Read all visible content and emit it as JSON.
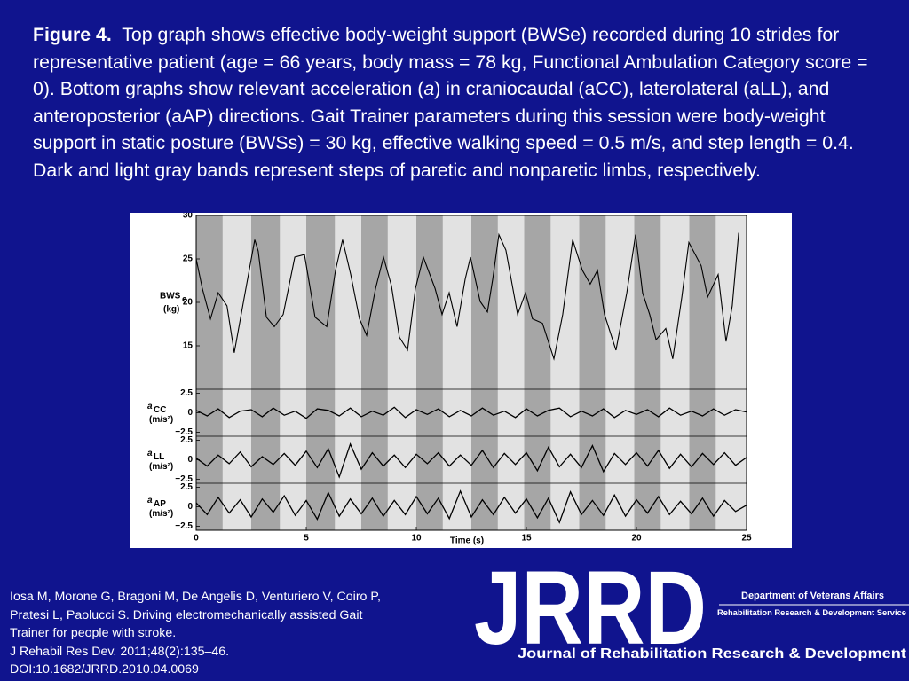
{
  "caption": {
    "label": "Figure  4.",
    "before": "Top graph shows effective body-weight support (BWSe) recorded during 10 strides for representative patient (age = 66 years, body mass = 78 kg, Functional Ambulation Category score = 0). Bottom graphs show relevant acceleration (",
    "italic": "a",
    "after": ") in craniocaudal (aCC), laterolateral (aLL), and anteroposterior (aAP) directions. Gait Trainer parameters during this session were body-weight support in static posture (BWSs) = 30 kg, effective walking speed = 0.5 m/s, and step length = 0.4. Dark and light gray bands represent steps of paretic and nonparetic limbs, respectively."
  },
  "chart_data": {
    "type": "line",
    "xlabel": "Time (s)",
    "xlim": [
      0,
      25
    ],
    "xticks": [
      0,
      5,
      10,
      15,
      20,
      25
    ],
    "band_colors": {
      "paretic": "#a6a6a6",
      "nonparetic": "#e2e2e2"
    },
    "paretic_steps": [
      [
        0,
        1.2
      ],
      [
        2.5,
        3.8
      ],
      [
        5,
        6.3
      ],
      [
        7.5,
        8.7
      ],
      [
        10,
        11.2
      ],
      [
        12.5,
        13.7
      ],
      [
        14.9,
        16.1
      ],
      [
        17.4,
        18.6
      ],
      [
        19.9,
        21.1
      ],
      [
        22.4,
        23.6
      ]
    ],
    "x": [
      0,
      0.5,
      1,
      1.5,
      2,
      2.5,
      3,
      3.5,
      4,
      4.5,
      5,
      5.5,
      6,
      6.5,
      7,
      7.5,
      8,
      8.5,
      9,
      9.5,
      10,
      10.5,
      11,
      11.5,
      12,
      12.5,
      13,
      13.5,
      14,
      14.5,
      15,
      15.5,
      16,
      16.5,
      17,
      17.5,
      18,
      18.5,
      19,
      19.5,
      20,
      20.5,
      21,
      21.5,
      22,
      22.5,
      23,
      23.5,
      24,
      24.5,
      25
    ],
    "panels": [
      {
        "ylabel": {
          "main": "BWS",
          "sub": "e",
          "unit": "(kg)"
        },
        "ylim": [
          10,
          30
        ],
        "yticks": [
          15,
          20,
          25,
          30
        ],
        "color": "#000000",
        "x": [
          0,
          0.28,
          0.65,
          1.0,
          1.4,
          1.73,
          2.22,
          2.66,
          2.82,
          3.19,
          3.55,
          3.95,
          4.48,
          4.92,
          5.4,
          5.93,
          6.33,
          6.65,
          7.02,
          7.42,
          7.74,
          8.15,
          8.51,
          8.87,
          9.23,
          9.6,
          9.96,
          10.32,
          10.85,
          11.17,
          11.49,
          11.85,
          12.22,
          12.46,
          12.9,
          13.23,
          13.47,
          13.75,
          14.07,
          14.6,
          14.96,
          15.28,
          15.73,
          16.25,
          16.65,
          17.1,
          17.54,
          17.9,
          18.23,
          18.55,
          19.07,
          19.56,
          19.96,
          20.28,
          20.6,
          20.89,
          21.33,
          21.65,
          22.06,
          22.38,
          22.94,
          23.23,
          23.71,
          24.07,
          24.35,
          24.64
        ],
        "values": [
          25,
          21.6,
          18.1,
          21.1,
          19.6,
          14.2,
          21.1,
          27.2,
          25.9,
          18.3,
          17.2,
          18.6,
          25.2,
          25.5,
          18.3,
          17.2,
          23.7,
          27.2,
          23.2,
          18.1,
          16.2,
          21.6,
          25.2,
          21.9,
          16.0,
          14.5,
          21.6,
          25.2,
          21.6,
          18.6,
          21.1,
          17.2,
          22.7,
          25.2,
          20.1,
          18.9,
          22.7,
          27.8,
          26.0,
          18.6,
          21.1,
          18.1,
          17.6,
          13.5,
          18.6,
          27.2,
          23.7,
          22.1,
          23.7,
          18.6,
          14.5,
          21.1,
          27.8,
          21.1,
          18.6,
          15.7,
          17.0,
          13.5,
          20.6,
          26.9,
          24.2,
          20.6,
          23.2,
          15.5,
          19.6,
          28.0
        ]
      },
      {
        "ylabel": {
          "main": "a",
          "sub": "CC",
          "unit": "(m/s²)"
        },
        "ylim": [
          -3,
          3
        ],
        "yticks": [
          {
            "value": -2.5,
            "label": "−2.5"
          },
          0,
          2.5
        ],
        "color": "#000000",
        "values": [
          0.3,
          -0.4,
          0.5,
          -0.6,
          0.2,
          0.4,
          -0.5,
          0.6,
          -0.3,
          0.2,
          -0.7,
          0.5,
          0.3,
          -0.4,
          0.6,
          -0.5,
          0.2,
          -0.3,
          0.7,
          -0.6,
          0.4,
          -0.2,
          0.5,
          -0.5,
          0.3,
          -0.4,
          0.6,
          -0.3,
          0.2,
          -0.6,
          0.5,
          -0.4,
          0.3,
          0.6,
          -0.5,
          0.2,
          -0.4,
          0.5,
          -0.6,
          0.3,
          -0.2,
          0.4,
          -0.5,
          0.6,
          -0.3,
          0.2,
          -0.4,
          0.5,
          -0.3,
          0.4,
          0.1
        ]
      },
      {
        "ylabel": {
          "main": "a",
          "sub": "LL",
          "unit": "(m/s²)"
        },
        "ylim": [
          -3,
          3
        ],
        "yticks": [
          {
            "value": -2.5,
            "label": "−2.5"
          },
          0,
          2.5
        ],
        "color": "#000000",
        "values": [
          0.2,
          -0.8,
          0.6,
          -0.5,
          1.0,
          -0.9,
          0.4,
          -0.6,
          0.8,
          -0.7,
          1.1,
          -1.0,
          1.4,
          -2.2,
          2.0,
          -1.2,
          0.9,
          -0.8,
          0.6,
          -1.0,
          0.7,
          -0.5,
          0.9,
          -0.8,
          0.6,
          -0.7,
          1.2,
          -1.0,
          0.8,
          -0.6,
          0.9,
          -1.4,
          1.6,
          -0.9,
          0.7,
          -1.0,
          1.8,
          -1.5,
          0.8,
          -0.6,
          0.9,
          -0.8,
          1.2,
          -1.1,
          0.7,
          -0.9,
          0.8,
          -0.6,
          0.9,
          -0.7,
          0.3
        ]
      },
      {
        "ylabel": {
          "main": "a",
          "sub": "AP",
          "unit": "(m/s²)"
        },
        "ylim": [
          -3,
          3
        ],
        "yticks": [
          {
            "value": -2.5,
            "label": "−2.5"
          },
          0,
          2.5
        ],
        "color": "#000000",
        "values": [
          0.5,
          -1.0,
          1.2,
          -0.8,
          0.9,
          -1.3,
          1.0,
          -0.7,
          1.4,
          -1.1,
          0.8,
          -1.6,
          1.8,
          -1.2,
          1.0,
          -0.9,
          1.1,
          -1.2,
          0.8,
          -1.0,
          1.3,
          -0.9,
          1.1,
          -1.5,
          2.0,
          -1.3,
          0.9,
          -1.0,
          1.2,
          -0.8,
          1.0,
          -1.4,
          1.1,
          -2.0,
          1.9,
          -1.0,
          0.8,
          -1.1,
          1.5,
          -1.2,
          0.9,
          -0.8,
          1.3,
          -1.0,
          0.7,
          -0.9,
          1.1,
          -1.2,
          0.8,
          -0.6,
          0.2
        ]
      }
    ]
  },
  "citation": [
    "Iosa M, Morone G, Bragoni M, De Angelis D, Venturiero V, Coiro P,",
    "Pratesi L, Paolucci S. Driving electromechanically assisted Gait",
    "Trainer for people with stroke.",
    "J Rehabil Res Dev. 2011;48(2):135–46.",
    "DOI:10.1682/JRRD.2010.04.0069"
  ],
  "logo": {
    "mark": "JRRD",
    "department": "Department of Veterans Affairs",
    "service": "Rehabilitation Research & Development Service",
    "journal": "Journal of Rehabilitation Research & Development"
  }
}
